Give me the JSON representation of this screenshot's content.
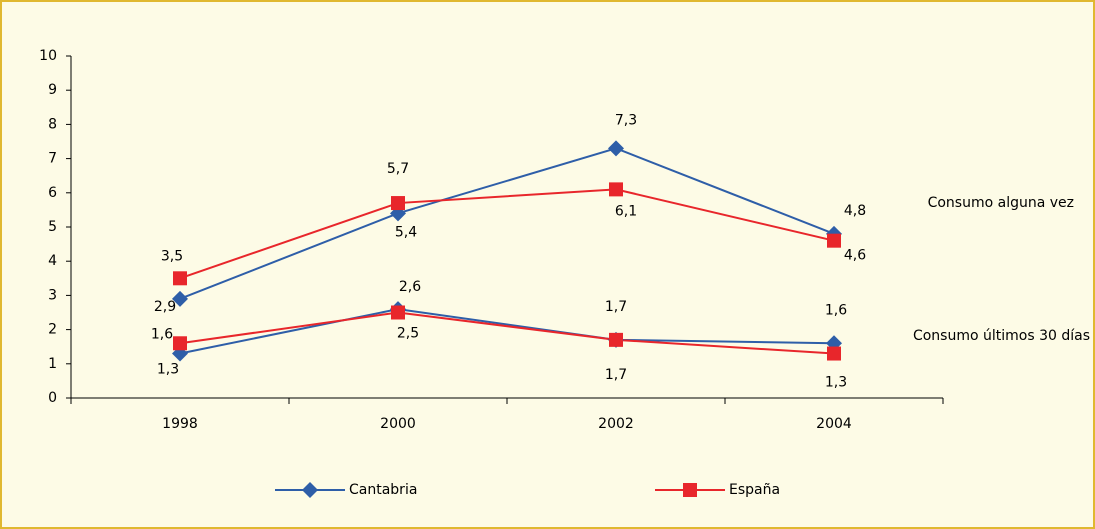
{
  "chart_data": {
    "type": "line",
    "categories": [
      "1998",
      "2000",
      "2002",
      "2004"
    ],
    "groups": [
      "Consumo alguna vez",
      "Consumo últimos 30 días"
    ],
    "series": [
      {
        "name": "Cantabria",
        "color": "#2e5ea8",
        "marker": "diamond",
        "values": [
          [
            2.9,
            5.4,
            7.3,
            4.8
          ],
          [
            1.3,
            2.6,
            1.7,
            1.6
          ]
        ],
        "value_labels": [
          [
            "2,9",
            "5,4",
            "7,3",
            "4,8"
          ],
          [
            "1,3",
            "2,6",
            "1,7",
            "1,6"
          ]
        ]
      },
      {
        "name": "España",
        "color": "#e8262b",
        "marker": "square",
        "values": [
          [
            3.5,
            5.7,
            6.1,
            4.6
          ],
          [
            1.6,
            2.5,
            1.7,
            1.3
          ]
        ],
        "value_labels": [
          [
            "3,5",
            "5,7",
            "6,1",
            "4,6"
          ],
          [
            "1,6",
            "2,5",
            "1,7",
            "1,3"
          ]
        ]
      }
    ],
    "ylim": [
      0,
      10
    ],
    "yticks": [
      0,
      1,
      2,
      3,
      4,
      5,
      6,
      7,
      8,
      9,
      10
    ],
    "grid": false,
    "legend": "bottom"
  }
}
